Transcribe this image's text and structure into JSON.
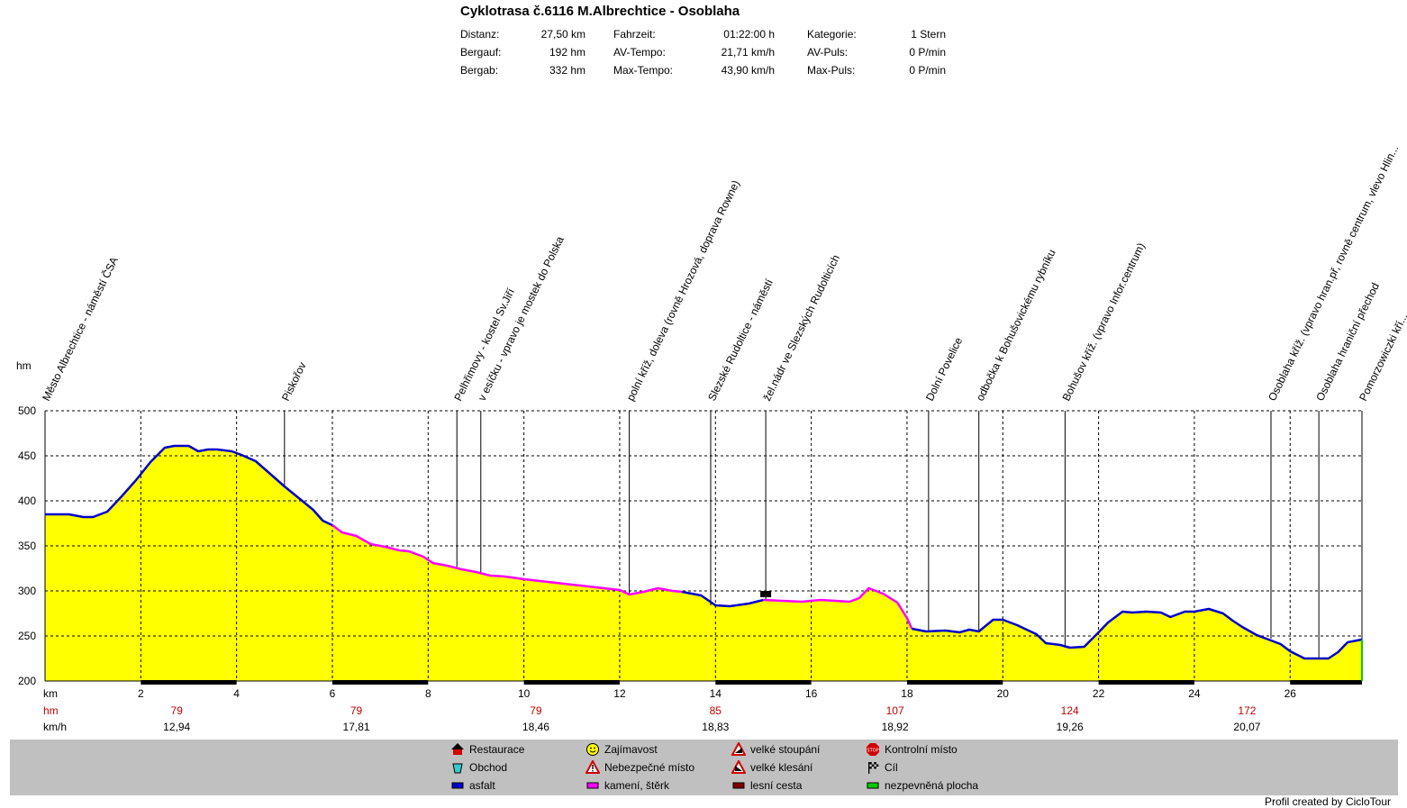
{
  "header": {
    "title": "Cyklotrasa č.6116 M.Albrechtice - Osoblaha",
    "stats": [
      {
        "label": "Distanz:",
        "value": "27,50 km"
      },
      {
        "label": "Bergauf:",
        "value": "192 hm"
      },
      {
        "label": "Bergab:",
        "value": "332 hm"
      },
      {
        "label": "Fahrzeit:",
        "value": "01:22:00 h"
      },
      {
        "label": "AV-Tempo:",
        "value": "21,71 km/h"
      },
      {
        "label": "Max-Tempo:",
        "value": "43,90 km/h"
      },
      {
        "label": "Kategorie:",
        "value": "1 Stern"
      },
      {
        "label": "AV-Puls:",
        "value": "0 P/min"
      },
      {
        "label": "Max-Puls:",
        "value": "0 P/min"
      }
    ]
  },
  "chart_data": {
    "type": "area",
    "ylabel": "hm",
    "xlabel": "km",
    "ylim": [
      200,
      500
    ],
    "xlim": [
      0,
      27.5
    ],
    "yticks": [
      200,
      250,
      300,
      350,
      400,
      450,
      500
    ],
    "xticks": [
      2,
      4,
      6,
      8,
      10,
      12,
      14,
      16,
      18,
      20,
      22,
      24,
      26
    ],
    "grid": true,
    "fill_color": "#ffff00",
    "surface_colors": {
      "asfalt": "#0000cc",
      "kameni_sterk": "#ff00ff"
    },
    "profile": [
      [
        0.0,
        385,
        "a"
      ],
      [
        0.5,
        385,
        "a"
      ],
      [
        0.8,
        382,
        "a"
      ],
      [
        1.0,
        382,
        "a"
      ],
      [
        1.3,
        388,
        "a"
      ],
      [
        1.6,
        405,
        "a"
      ],
      [
        1.9,
        423,
        "a"
      ],
      [
        2.2,
        443,
        "a"
      ],
      [
        2.5,
        459,
        "a"
      ],
      [
        2.7,
        461,
        "a"
      ],
      [
        3.0,
        461,
        "a"
      ],
      [
        3.2,
        455,
        "a"
      ],
      [
        3.4,
        457,
        "a"
      ],
      [
        3.6,
        457,
        "a"
      ],
      [
        3.9,
        455,
        "a"
      ],
      [
        4.1,
        451,
        "a"
      ],
      [
        4.4,
        444,
        "a"
      ],
      [
        4.7,
        430,
        "a"
      ],
      [
        5.0,
        416,
        "a"
      ],
      [
        5.3,
        403,
        "a"
      ],
      [
        5.6,
        390,
        "a"
      ],
      [
        5.8,
        378,
        "a"
      ],
      [
        6.0,
        373,
        "a"
      ],
      [
        6.0,
        373,
        "s"
      ],
      [
        6.2,
        365,
        "s"
      ],
      [
        6.5,
        361,
        "s"
      ],
      [
        6.8,
        352,
        "s"
      ],
      [
        7.1,
        349,
        "s"
      ],
      [
        7.4,
        345,
        "s"
      ],
      [
        7.6,
        344,
        "s"
      ],
      [
        7.9,
        338,
        "s"
      ],
      [
        8.1,
        331,
        "s"
      ],
      [
        8.4,
        328,
        "s"
      ],
      [
        8.7,
        324,
        "s"
      ],
      [
        9.0,
        321,
        "s"
      ],
      [
        9.3,
        317,
        "s"
      ],
      [
        9.6,
        316,
        "s"
      ],
      [
        10.0,
        313,
        "s"
      ],
      [
        10.5,
        310,
        "s"
      ],
      [
        11.0,
        307,
        "s"
      ],
      [
        11.5,
        304,
        "s"
      ],
      [
        12.0,
        301,
        "s"
      ],
      [
        12.2,
        296,
        "s"
      ],
      [
        12.5,
        299,
        "s"
      ],
      [
        12.8,
        303,
        "s"
      ],
      [
        13.1,
        300,
        "s"
      ],
      [
        13.3,
        299,
        "s"
      ],
      [
        13.3,
        299,
        "a"
      ],
      [
        13.7,
        295,
        "a"
      ],
      [
        14.0,
        284,
        "a"
      ],
      [
        14.3,
        283,
        "a"
      ],
      [
        14.7,
        286,
        "a"
      ],
      [
        15.0,
        290,
        "a"
      ],
      [
        15.0,
        290,
        "s"
      ],
      [
        15.4,
        289,
        "s"
      ],
      [
        15.8,
        288,
        "s"
      ],
      [
        16.2,
        290,
        "s"
      ],
      [
        16.5,
        289,
        "s"
      ],
      [
        16.8,
        288,
        "s"
      ],
      [
        17.0,
        292,
        "s"
      ],
      [
        17.2,
        303,
        "s"
      ],
      [
        17.5,
        297,
        "s"
      ],
      [
        17.8,
        287,
        "s"
      ],
      [
        18.0,
        270,
        "s"
      ],
      [
        18.1,
        258,
        "s"
      ],
      [
        18.1,
        258,
        "a"
      ],
      [
        18.4,
        255,
        "a"
      ],
      [
        18.8,
        256,
        "a"
      ],
      [
        19.1,
        254,
        "a"
      ],
      [
        19.3,
        257,
        "a"
      ],
      [
        19.5,
        255,
        "a"
      ],
      [
        19.8,
        268,
        "a"
      ],
      [
        20.0,
        268,
        "a"
      ],
      [
        20.3,
        262,
        "a"
      ],
      [
        20.7,
        252,
        "a"
      ],
      [
        20.9,
        242,
        "a"
      ],
      [
        21.2,
        240,
        "a"
      ],
      [
        21.4,
        237,
        "a"
      ],
      [
        21.7,
        238,
        "a"
      ],
      [
        22.0,
        254,
        "a"
      ],
      [
        22.2,
        265,
        "a"
      ],
      [
        22.5,
        277,
        "a"
      ],
      [
        22.7,
        276,
        "a"
      ],
      [
        23.0,
        277,
        "a"
      ],
      [
        23.3,
        276,
        "a"
      ],
      [
        23.5,
        271,
        "a"
      ],
      [
        23.8,
        277,
        "a"
      ],
      [
        24.0,
        277,
        "a"
      ],
      [
        24.3,
        280,
        "a"
      ],
      [
        24.6,
        275,
        "a"
      ],
      [
        24.8,
        267,
        "a"
      ],
      [
        25.0,
        260,
        "a"
      ],
      [
        25.3,
        251,
        "a"
      ],
      [
        25.5,
        247,
        "a"
      ],
      [
        25.8,
        241,
        "a"
      ],
      [
        26.0,
        233,
        "a"
      ],
      [
        26.3,
        225,
        "a"
      ],
      [
        26.5,
        225,
        "a"
      ],
      [
        26.8,
        225,
        "a"
      ],
      [
        27.0,
        232,
        "a"
      ],
      [
        27.2,
        243,
        "a"
      ],
      [
        27.5,
        246,
        "a"
      ]
    ],
    "waypoints": [
      {
        "km": 0.0,
        "label": "Město Albrechtice - náměstí ČSA"
      },
      {
        "km": 5.0,
        "label": "Piskořov"
      },
      {
        "km": 8.6,
        "label": "Pelhřimovy - kostel Sv.Jiří"
      },
      {
        "km": 9.1,
        "label": "v esíčku - vpravo je mostek do Polska"
      },
      {
        "km": 12.2,
        "label": "polní kříž, doleva (rovně Hrozová, doprava Rowne)"
      },
      {
        "km": 13.9,
        "label": "Slezské Rudoltice - náměstí"
      },
      {
        "km": 15.05,
        "label": "žel.nádr ve Slezských Rudolticích"
      },
      {
        "km": 18.45,
        "label": "Dolní Povelice"
      },
      {
        "km": 19.5,
        "label": "odbočka k Bohušovickému rybníku"
      },
      {
        "km": 21.3,
        "label": "Bohušov kříž. (vpravo Infor.centrum)"
      },
      {
        "km": 25.6,
        "label": "Osoblaha kříž. (vpravo hran.př, rovně centrum, vlevo Hlin..."
      },
      {
        "km": 26.6,
        "label": "Osoblaha hraniční přechod"
      },
      {
        "km": 27.5,
        "label": "Pomorzowiczki kří..."
      }
    ],
    "hm_row": {
      "label": "hm",
      "values": [
        "79",
        "79",
        "79",
        "85",
        "107",
        "124",
        "172"
      ]
    },
    "kmh_row": {
      "label": "km/h",
      "values": [
        "12,94",
        "17,81",
        "18,46",
        "18,83",
        "18,92",
        "19,26",
        "20,07"
      ]
    },
    "row_km_positions": [
      2.75,
      6.5,
      10.25,
      14.0,
      17.75,
      21.4,
      25.1
    ]
  },
  "legend": [
    {
      "icon": "restaurant-icon",
      "label": "Restaurace"
    },
    {
      "icon": "shop-icon",
      "label": "Obchod"
    },
    {
      "icon": "asphalt-swatch",
      "label": "asfalt",
      "color": "#0000cc"
    },
    {
      "icon": "smiley-icon",
      "label": "Zajímavost"
    },
    {
      "icon": "warning-icon",
      "label": "Nebezpečné místo"
    },
    {
      "icon": "gravel-swatch",
      "label": "kamení, štěrk",
      "color": "#ff00ff"
    },
    {
      "icon": "climb-icon",
      "label": "velké stoupání"
    },
    {
      "icon": "descent-icon",
      "label": "velké klesání"
    },
    {
      "icon": "forest-path-swatch",
      "label": "lesní cesta",
      "color": "#800000"
    },
    {
      "icon": "stop-icon",
      "label": "Kontrolní místo"
    },
    {
      "icon": "finish-flag-icon",
      "label": "Cíl"
    },
    {
      "icon": "unpaved-swatch",
      "label": "nezpevněná plocha",
      "color": "#00cc00"
    }
  ],
  "footer": {
    "credit": "Profil created by CicloTour"
  }
}
